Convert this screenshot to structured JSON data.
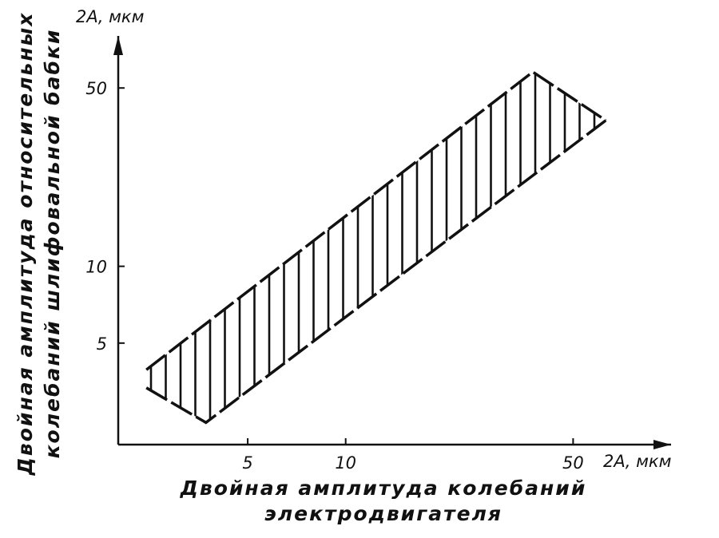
{
  "chart_data": {
    "type": "band",
    "x_label": [
      "Двойная амплитуда колебаний",
      "электродвигателя"
    ],
    "y_label": [
      "Двойная амплитуда относительных",
      "колебаний шлифовальной бабки"
    ],
    "x_unit": "2А, мкм",
    "y_unit": "2А, мкм",
    "log_x": true,
    "log_y": true,
    "xlim": [
      2,
      100
    ],
    "ylim": [
      2,
      80
    ],
    "xticks": [
      5,
      10,
      50
    ],
    "yticks": [
      5,
      10,
      50
    ],
    "color": "#111111",
    "band": {
      "x": [
        2.44,
        3.72,
        37.6,
        63
      ],
      "upper": [
        3.93,
        5.96,
        57.8,
        37.3
      ],
      "lower": [
        3.34,
        2.44,
        22.7,
        37.3
      ]
    }
  }
}
